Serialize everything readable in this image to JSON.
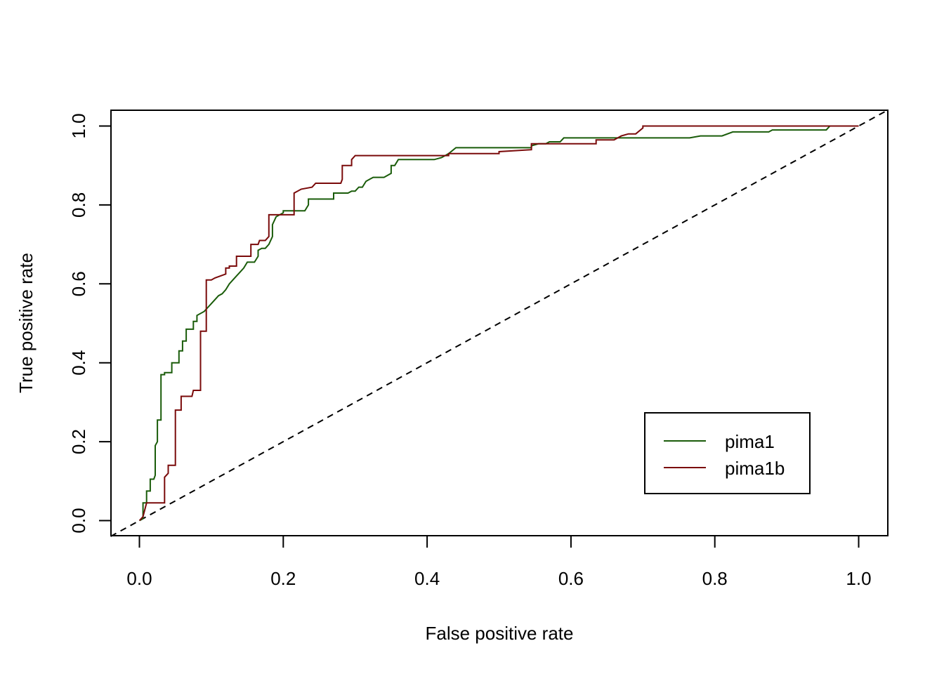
{
  "chart_data": {
    "type": "line",
    "title": "",
    "xlabel": "False positive rate",
    "ylabel": "True positive rate",
    "xlim": [
      0,
      1
    ],
    "ylim": [
      0,
      1
    ],
    "x_ticks": [
      "0.0",
      "0.2",
      "0.4",
      "0.6",
      "0.8",
      "1.0"
    ],
    "y_ticks": [
      "0.0",
      "0.2",
      "0.4",
      "0.6",
      "0.8",
      "1.0"
    ],
    "grid": false,
    "legend_position": "bottom-right",
    "reference_line": {
      "style": "dashed",
      "color": "#000000",
      "from": [
        0,
        0
      ],
      "to": [
        1,
        1
      ]
    },
    "series": [
      {
        "name": "pima1",
        "color": "#1a5c0a",
        "points": [
          [
            0,
            0
          ],
          [
            0.005,
            0.005
          ],
          [
            0.005,
            0.045
          ],
          [
            0.01,
            0.045
          ],
          [
            0.01,
            0.075
          ],
          [
            0.015,
            0.075
          ],
          [
            0.015,
            0.105
          ],
          [
            0.02,
            0.105
          ],
          [
            0.022,
            0.115
          ],
          [
            0.022,
            0.19
          ],
          [
            0.025,
            0.2
          ],
          [
            0.025,
            0.255
          ],
          [
            0.03,
            0.255
          ],
          [
            0.03,
            0.37
          ],
          [
            0.035,
            0.37
          ],
          [
            0.035,
            0.375
          ],
          [
            0.045,
            0.375
          ],
          [
            0.045,
            0.4
          ],
          [
            0.055,
            0.4
          ],
          [
            0.055,
            0.43
          ],
          [
            0.06,
            0.43
          ],
          [
            0.06,
            0.455
          ],
          [
            0.065,
            0.455
          ],
          [
            0.065,
            0.485
          ],
          [
            0.075,
            0.485
          ],
          [
            0.075,
            0.505
          ],
          [
            0.08,
            0.505
          ],
          [
            0.08,
            0.52
          ],
          [
            0.09,
            0.53
          ],
          [
            0.095,
            0.54
          ],
          [
            0.1,
            0.55
          ],
          [
            0.105,
            0.56
          ],
          [
            0.11,
            0.57
          ],
          [
            0.115,
            0.575
          ],
          [
            0.12,
            0.585
          ],
          [
            0.125,
            0.6
          ],
          [
            0.13,
            0.61
          ],
          [
            0.135,
            0.62
          ],
          [
            0.14,
            0.63
          ],
          [
            0.145,
            0.64
          ],
          [
            0.15,
            0.655
          ],
          [
            0.16,
            0.655
          ],
          [
            0.165,
            0.67
          ],
          [
            0.165,
            0.685
          ],
          [
            0.17,
            0.69
          ],
          [
            0.175,
            0.69
          ],
          [
            0.18,
            0.7
          ],
          [
            0.185,
            0.72
          ],
          [
            0.185,
            0.75
          ],
          [
            0.19,
            0.77
          ],
          [
            0.2,
            0.78
          ],
          [
            0.2,
            0.785
          ],
          [
            0.23,
            0.785
          ],
          [
            0.235,
            0.8
          ],
          [
            0.235,
            0.815
          ],
          [
            0.27,
            0.815
          ],
          [
            0.27,
            0.83
          ],
          [
            0.29,
            0.83
          ],
          [
            0.295,
            0.835
          ],
          [
            0.3,
            0.835
          ],
          [
            0.305,
            0.845
          ],
          [
            0.31,
            0.845
          ],
          [
            0.315,
            0.86
          ],
          [
            0.32,
            0.865
          ],
          [
            0.325,
            0.87
          ],
          [
            0.34,
            0.87
          ],
          [
            0.345,
            0.875
          ],
          [
            0.35,
            0.88
          ],
          [
            0.35,
            0.9
          ],
          [
            0.355,
            0.9
          ],
          [
            0.36,
            0.915
          ],
          [
            0.41,
            0.915
          ],
          [
            0.42,
            0.92
          ],
          [
            0.43,
            0.93
          ],
          [
            0.44,
            0.945
          ],
          [
            0.545,
            0.945
          ],
          [
            0.545,
            0.95
          ],
          [
            0.555,
            0.955
          ],
          [
            0.565,
            0.955
          ],
          [
            0.57,
            0.96
          ],
          [
            0.585,
            0.96
          ],
          [
            0.59,
            0.97
          ],
          [
            0.765,
            0.97
          ],
          [
            0.78,
            0.975
          ],
          [
            0.81,
            0.975
          ],
          [
            0.825,
            0.985
          ],
          [
            0.875,
            0.985
          ],
          [
            0.88,
            0.99
          ],
          [
            0.955,
            0.99
          ],
          [
            0.96,
            1.0
          ],
          [
            1.0,
            1.0
          ]
        ]
      },
      {
        "name": "pima1b",
        "color": "#7a0a0a",
        "points": [
          [
            0,
            0
          ],
          [
            0.005,
            0.01
          ],
          [
            0.01,
            0.045
          ],
          [
            0.035,
            0.045
          ],
          [
            0.035,
            0.11
          ],
          [
            0.04,
            0.12
          ],
          [
            0.04,
            0.14
          ],
          [
            0.05,
            0.14
          ],
          [
            0.05,
            0.28
          ],
          [
            0.058,
            0.28
          ],
          [
            0.058,
            0.315
          ],
          [
            0.073,
            0.315
          ],
          [
            0.075,
            0.33
          ],
          [
            0.085,
            0.33
          ],
          [
            0.085,
            0.48
          ],
          [
            0.093,
            0.48
          ],
          [
            0.093,
            0.61
          ],
          [
            0.1,
            0.61
          ],
          [
            0.105,
            0.615
          ],
          [
            0.12,
            0.625
          ],
          [
            0.12,
            0.64
          ],
          [
            0.125,
            0.64
          ],
          [
            0.125,
            0.645
          ],
          [
            0.135,
            0.645
          ],
          [
            0.135,
            0.67
          ],
          [
            0.155,
            0.67
          ],
          [
            0.155,
            0.7
          ],
          [
            0.165,
            0.7
          ],
          [
            0.167,
            0.71
          ],
          [
            0.175,
            0.71
          ],
          [
            0.18,
            0.72
          ],
          [
            0.18,
            0.775
          ],
          [
            0.215,
            0.775
          ],
          [
            0.215,
            0.83
          ],
          [
            0.225,
            0.84
          ],
          [
            0.24,
            0.845
          ],
          [
            0.245,
            0.855
          ],
          [
            0.28,
            0.855
          ],
          [
            0.282,
            0.865
          ],
          [
            0.282,
            0.9
          ],
          [
            0.295,
            0.9
          ],
          [
            0.295,
            0.915
          ],
          [
            0.3,
            0.925
          ],
          [
            0.43,
            0.925
          ],
          [
            0.43,
            0.93
          ],
          [
            0.5,
            0.93
          ],
          [
            0.5,
            0.935
          ],
          [
            0.545,
            0.94
          ],
          [
            0.545,
            0.955
          ],
          [
            0.635,
            0.955
          ],
          [
            0.635,
            0.965
          ],
          [
            0.66,
            0.965
          ],
          [
            0.665,
            0.97
          ],
          [
            0.67,
            0.975
          ],
          [
            0.68,
            0.98
          ],
          [
            0.69,
            0.98
          ],
          [
            0.7,
            0.995
          ],
          [
            0.7,
            1.0
          ],
          [
            1.0,
            1.0
          ]
        ]
      }
    ]
  }
}
